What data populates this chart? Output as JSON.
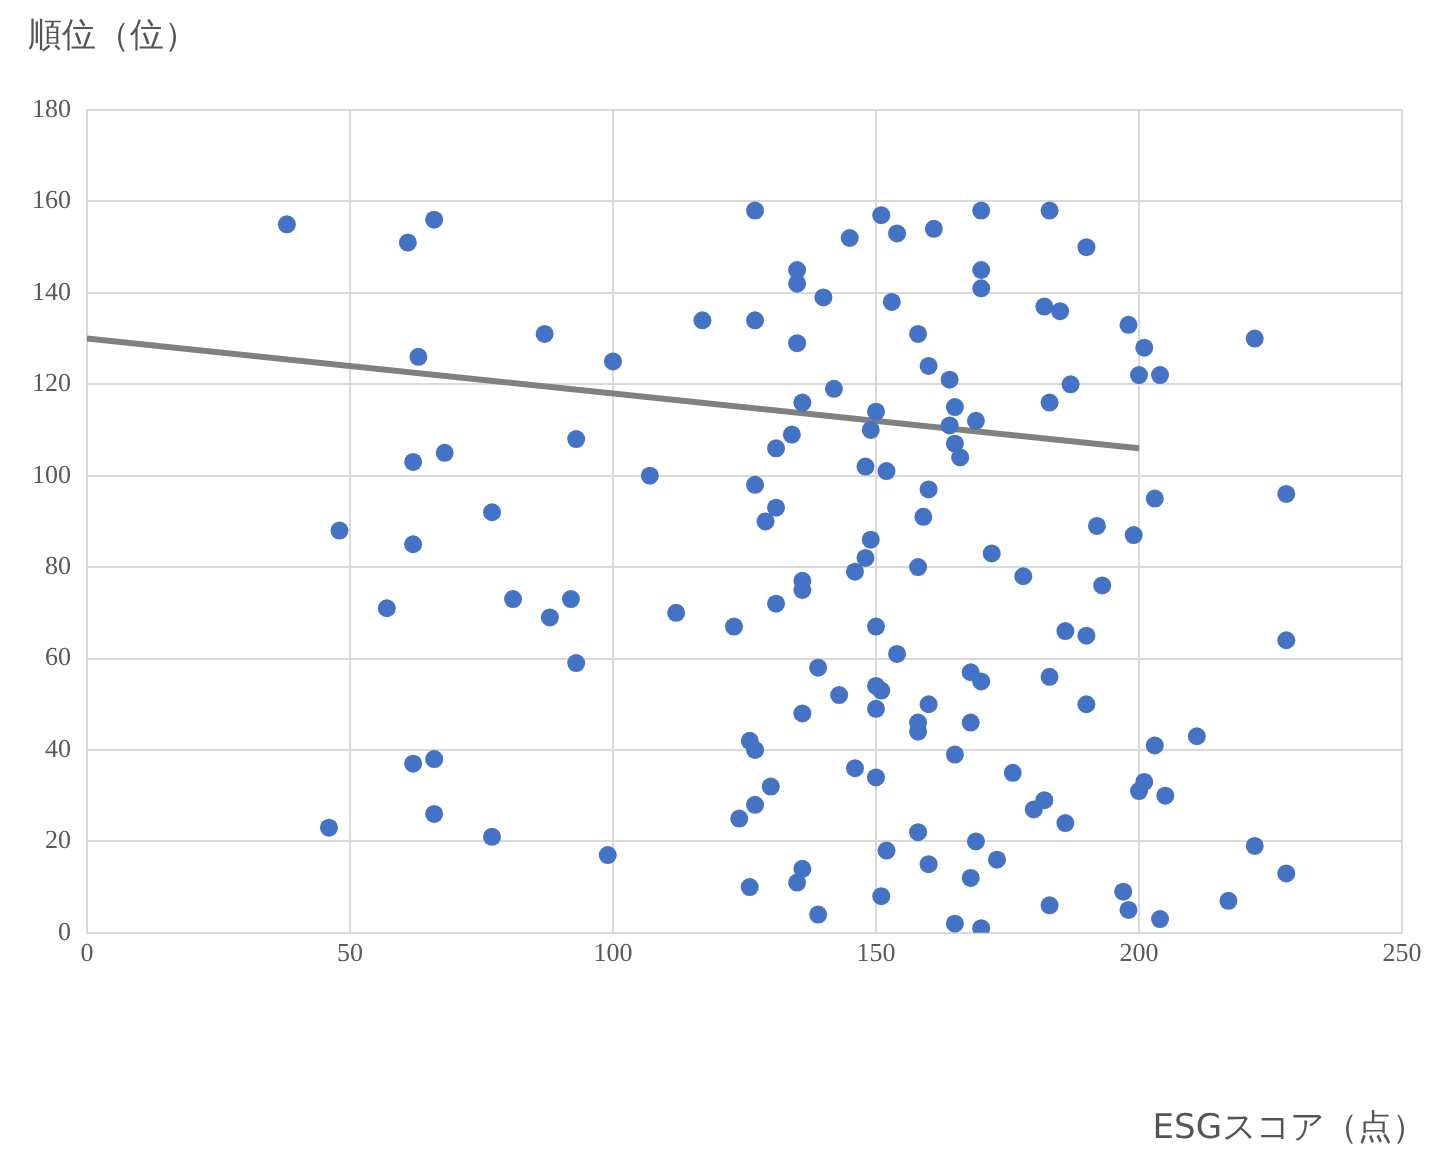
{
  "chart_data": {
    "type": "scatter",
    "ylabel": "順位（位）",
    "xlabel": "ESGスコア（点）",
    "xlim": [
      0,
      250
    ],
    "xticks": [
      0,
      50,
      100,
      150,
      200,
      250
    ],
    "ylim": [
      0,
      180
    ],
    "yticks": [
      0,
      20,
      40,
      60,
      80,
      100,
      120,
      140,
      160,
      180
    ],
    "grid": true,
    "legend": false,
    "marker": "circle",
    "series": [
      {
        "color": "#4472c4",
        "x": [
          38,
          61,
          66,
          63,
          62,
          68,
          48,
          62,
          57,
          77,
          87,
          93,
          81,
          88,
          92,
          93,
          100,
          107,
          112,
          117,
          127,
          127,
          127,
          129,
          131,
          131,
          135,
          135,
          135,
          134,
          136,
          140,
          142,
          145,
          148,
          149,
          150,
          151,
          152,
          153,
          154,
          158,
          160,
          161,
          164,
          165,
          164,
          165,
          166,
          169,
          170,
          170,
          170,
          183,
          182,
          185,
          187,
          183,
          190,
          198,
          200,
          201,
          204,
          222,
          228,
          203,
          199,
          192,
          193,
          190,
          186,
          178,
          172,
          159,
          160,
          158,
          149,
          148,
          146,
          136,
          136,
          131,
          123,
          150,
          154,
          139,
          143,
          150,
          151,
          150,
          160,
          168,
          170,
          168,
          158,
          158,
          165,
          183,
          190,
          203,
          211,
          228,
          200,
          201,
          205,
          176,
          182,
          180,
          186,
          222,
          228,
          217,
          197,
          198,
          204,
          183,
          169,
          173,
          168,
          165,
          170,
          158,
          160,
          152,
          151,
          139,
          136,
          135,
          126,
          130,
          127,
          124,
          126,
          127,
          136,
          146,
          150,
          99,
          77,
          46,
          62,
          66,
          66
        ],
        "values": [
          155,
          151,
          156,
          126,
          103,
          105,
          88,
          85,
          71,
          92,
          131,
          108,
          73,
          69,
          73,
          59,
          125,
          100,
          70,
          134,
          158,
          134,
          98,
          90,
          93,
          106,
          145,
          142,
          129,
          109,
          116,
          139,
          119,
          152,
          102,
          110,
          114,
          157,
          101,
          138,
          153,
          131,
          124,
          154,
          121,
          115,
          111,
          107,
          104,
          112,
          145,
          141,
          158,
          158,
          137,
          136,
          120,
          116,
          150,
          133,
          122,
          128,
          122,
          130,
          96,
          95,
          87,
          89,
          76,
          65,
          66,
          78,
          83,
          91,
          97,
          80,
          86,
          82,
          79,
          77,
          75,
          72,
          67,
          67,
          61,
          58,
          52,
          54,
          53,
          49,
          50,
          57,
          55,
          46,
          46,
          44,
          39,
          56,
          50,
          41,
          43,
          64,
          31,
          33,
          30,
          35,
          29,
          27,
          24,
          19,
          13,
          7,
          9,
          5,
          3,
          6,
          20,
          16,
          12,
          2,
          1,
          22,
          15,
          18,
          8,
          4,
          14,
          11,
          10,
          32,
          28,
          25,
          42,
          40,
          48,
          36,
          34,
          17,
          21,
          23,
          37,
          38,
          26
        ]
      },
      {
        "type": "line",
        "color": "#808080",
        "marker": "none",
        "x": [
          0,
          200
        ],
        "values": [
          130,
          106
        ]
      }
    ]
  }
}
